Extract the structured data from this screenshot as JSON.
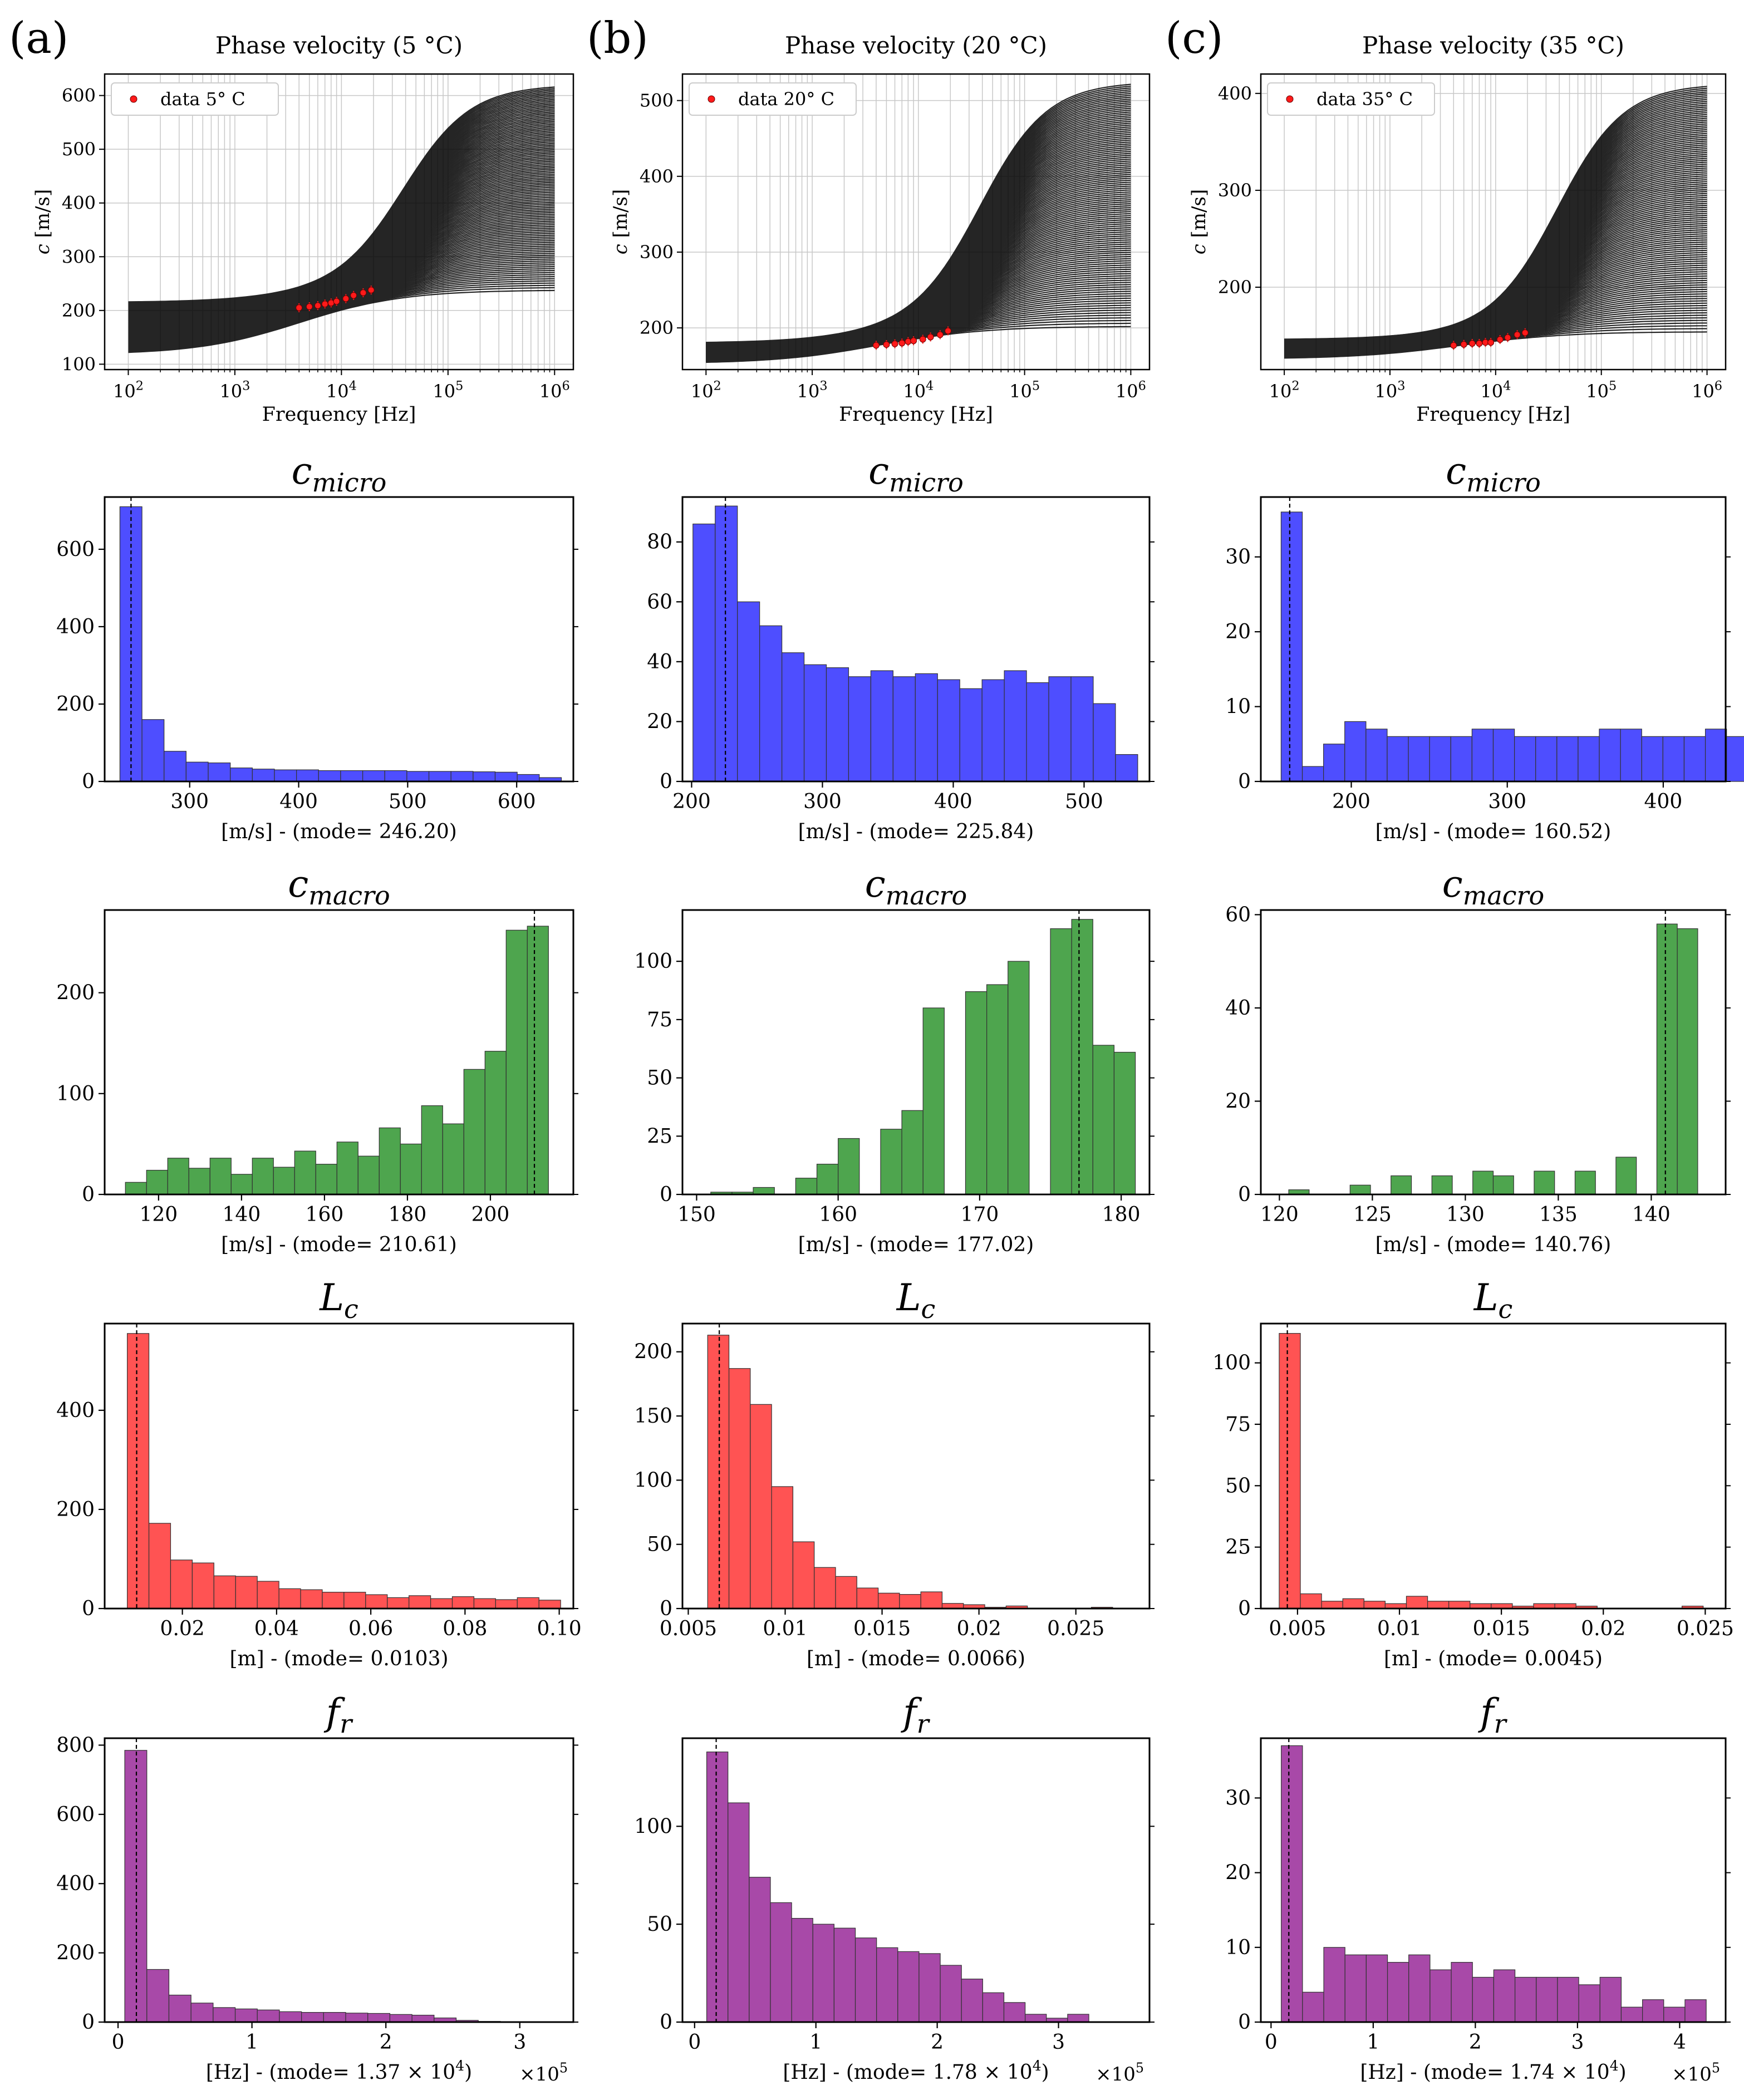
{
  "colors": {
    "micro": "#4444ff",
    "macro": "#45a045",
    "lc": "#ff4a4a",
    "fr": "#a33fa3",
    "data_point": "#ff1a1a",
    "curve": "#000000",
    "grid": "#c8c8c8"
  },
  "columns": [
    {
      "panel_label": "(a)",
      "temp_label": "5°C"
    },
    {
      "panel_label": "(b)",
      "temp_label": "20°C"
    },
    {
      "panel_label": "(c)",
      "temp_label": "35°C"
    }
  ],
  "chart_data": [
    {
      "type": "line",
      "panel": "(a)",
      "title": "Phase velocity (5 °C)",
      "xlabel": "Frequency [Hz]",
      "ylabel": "c [m/s]",
      "xscale": "log",
      "xlim": [
        60,
        1500000
      ],
      "ylim": [
        90,
        640
      ],
      "yticks": [
        100,
        200,
        300,
        400,
        500,
        600
      ],
      "xticks": [
        "10^2",
        "10^3",
        "10^4",
        "10^5",
        "10^6"
      ],
      "legend": "data 5° C",
      "legend_loc": "upper-left",
      "grid": true,
      "curve_family": {
        "count": 120,
        "low_start": [
          118,
          215
        ],
        "low_end": [
          236,
          242
        ],
        "high_end": [
          238,
          620
        ],
        "transition_hz": [
          5000,
          300000
        ]
      },
      "data_points": {
        "x": [
          4000,
          5000,
          6000,
          7000,
          8000,
          9000,
          11000,
          13000,
          16000,
          19000
        ],
        "y": [
          205,
          207,
          209,
          212,
          214,
          217,
          222,
          228,
          233,
          238
        ]
      }
    },
    {
      "type": "line",
      "panel": "(b)",
      "title": "Phase velocity (20 °C)",
      "xlabel": "Frequency [Hz]",
      "ylabel": "c [m/s]",
      "xscale": "log",
      "xlim": [
        60,
        1500000
      ],
      "ylim": [
        145,
        535
      ],
      "yticks": [
        200,
        300,
        400,
        500
      ],
      "xticks": [
        "10^2",
        "10^3",
        "10^4",
        "10^5",
        "10^6"
      ],
      "legend": "data 20° C",
      "legend_loc": "upper-left",
      "grid": true,
      "curve_family": {
        "count": 120,
        "low_start": [
          153,
          180
        ],
        "low_end": [
          200,
          205
        ],
        "high_end": [
          202,
          525
        ],
        "transition_hz": [
          5000,
          300000
        ]
      },
      "data_points": {
        "x": [
          4000,
          5000,
          6000,
          7000,
          8000,
          9000,
          11000,
          13000,
          16000,
          19000
        ],
        "y": [
          177,
          178,
          179,
          180,
          182,
          183,
          185,
          188,
          191,
          196
        ]
      }
    },
    {
      "type": "line",
      "panel": "(c)",
      "title": "Phase velocity (35 °C)",
      "xlabel": "Frequency [Hz]",
      "ylabel": "c [m/s]",
      "xscale": "log",
      "xlim": [
        60,
        1500000
      ],
      "ylim": [
        115,
        420
      ],
      "yticks": [
        200,
        300,
        400
      ],
      "xticks": [
        "10^2",
        "10^3",
        "10^4",
        "10^5",
        "10^6"
      ],
      "legend": "data 35° C",
      "legend_loc": "upper-left",
      "grid": true,
      "curve_family": {
        "count": 120,
        "low_start": [
          126,
          146
        ],
        "low_end": [
          152,
          156
        ],
        "high_end": [
          154,
          410
        ],
        "transition_hz": [
          5000,
          300000
        ]
      },
      "data_points": {
        "x": [
          4000,
          5000,
          6000,
          7000,
          8000,
          9000,
          11000,
          13000,
          16000,
          19000
        ],
        "y": [
          140,
          141,
          142,
          142,
          143,
          143,
          146,
          148,
          151,
          153
        ]
      }
    },
    {
      "type": "bar",
      "panel": "(a)",
      "row": "micro",
      "title": "c_micro",
      "xlabel": "[m/s] - (mode= 246.20)",
      "bin_start": 236,
      "bin_width": 20.25,
      "values": [
        710,
        160,
        78,
        50,
        48,
        35,
        32,
        30,
        30,
        28,
        28,
        28,
        28,
        26,
        26,
        26,
        25,
        24,
        18,
        10
      ],
      "mode": 246.2,
      "xlim": [
        222,
        652
      ],
      "ylim": [
        0,
        735
      ],
      "xticks": [
        300,
        400,
        500,
        600
      ],
      "yticks": [
        0,
        200,
        400,
        600
      ]
    },
    {
      "type": "bar",
      "panel": "(b)",
      "row": "micro",
      "title": "c_micro",
      "xlabel": "[m/s] - (mode= 225.84)",
      "bin_start": 201,
      "bin_width": 17,
      "values": [
        86,
        92,
        60,
        52,
        43,
        39,
        38,
        35,
        37,
        35,
        36,
        34,
        31,
        34,
        37,
        33,
        35,
        35,
        26,
        9
      ],
      "mode": 225.84,
      "xlim": [
        193,
        550
      ],
      "ylim": [
        0,
        95
      ],
      "xticks": [
        200,
        300,
        400,
        500
      ],
      "yticks": [
        0,
        20,
        40,
        60,
        80
      ]
    },
    {
      "type": "bar",
      "panel": "(c)",
      "row": "micro",
      "title": "c_micro",
      "xlabel": "[m/s] - (mode= 160.52)",
      "bin_start": 155,
      "bin_width": 13.6,
      "values": [
        36,
        2,
        5,
        8,
        7,
        6,
        6,
        6,
        6,
        7,
        7,
        6,
        6,
        6,
        6,
        7,
        7,
        6,
        6,
        6,
        7,
        6
      ],
      "mode": 160.52,
      "xlim": [
        142,
        440
      ],
      "ylim": [
        0,
        38
      ],
      "xticks": [
        200,
        300,
        400
      ],
      "yticks": [
        0,
        10,
        20,
        30
      ]
    },
    {
      "type": "bar",
      "panel": "(a)",
      "row": "macro",
      "title": "c_macro",
      "xlabel": "[m/s] - (mode= 210.61)",
      "bin_start": 112,
      "bin_width": 5.1,
      "values": [
        12,
        24,
        36,
        26,
        36,
        20,
        36,
        27,
        43,
        30,
        52,
        38,
        66,
        50,
        88,
        70,
        124,
        142,
        262,
        266
      ],
      "mode": 210.61,
      "xlim": [
        107,
        220
      ],
      "ylim": [
        0,
        282
      ],
      "xticks": [
        120,
        140,
        160,
        180,
        200
      ],
      "yticks": [
        0,
        100,
        200
      ]
    },
    {
      "type": "bar",
      "panel": "(b)",
      "row": "macro",
      "title": "c_macro",
      "xlabel": "[m/s] - (mode= 177.02)",
      "bin_start": 151,
      "bin_width": 1.5,
      "values": [
        1,
        1,
        3,
        0,
        7,
        13,
        24,
        0,
        28,
        36,
        80,
        0,
        87,
        90,
        100,
        0,
        114,
        118,
        64,
        61
      ],
      "mode": 177.02,
      "xlim": [
        149,
        182
      ],
      "ylim": [
        0,
        122
      ],
      "xticks": [
        150,
        160,
        170,
        180
      ],
      "yticks": [
        0,
        25,
        50,
        75,
        100
      ]
    },
    {
      "type": "bar",
      "panel": "(c)",
      "row": "macro",
      "title": "c_macro",
      "xlabel": "[m/s] - (mode= 140.76)",
      "bin_start": 120.5,
      "bin_width": 1.1,
      "values": [
        1,
        0,
        0,
        2,
        0,
        4,
        0,
        4,
        0,
        5,
        4,
        0,
        5,
        0,
        5,
        0,
        8,
        0,
        58,
        57
      ],
      "mode": 140.76,
      "xlim": [
        119,
        144
      ],
      "ylim": [
        0,
        61
      ],
      "xticks": [
        120,
        125,
        130,
        135,
        140
      ],
      "yticks": [
        0,
        20,
        40,
        60
      ]
    },
    {
      "type": "bar",
      "panel": "(a)",
      "row": "lc",
      "title": "L_c",
      "xlabel": "[m] - (mode= 0.0103)",
      "bin_start": 0.0083,
      "bin_width": 0.0046,
      "values": [
        555,
        172,
        98,
        92,
        66,
        65,
        55,
        40,
        38,
        33,
        33,
        28,
        22,
        26,
        20,
        24,
        20,
        18,
        22,
        17
      ],
      "mode": 0.0103,
      "xlim": [
        0.0035,
        0.103
      ],
      "ylim": [
        0,
        575
      ],
      "xticks": [
        0.02,
        0.04,
        0.06,
        0.08,
        0.1
      ],
      "yticks": [
        0,
        200,
        400
      ]
    },
    {
      "type": "bar",
      "panel": "(b)",
      "row": "lc",
      "title": "L_c",
      "xlabel": "[m] - (mode= 0.0066)",
      "bin_start": 0.006,
      "bin_width": 0.0011,
      "values": [
        213,
        187,
        159,
        95,
        52,
        32,
        25,
        16,
        12,
        11,
        13,
        4,
        3,
        1,
        2,
        0,
        0,
        0,
        1,
        0
      ],
      "mode": 0.0066,
      "xlim": [
        0.0047,
        0.0288
      ],
      "ylim": [
        0,
        222
      ],
      "xticks": [
        0.005,
        0.01,
        0.015,
        0.02,
        0.025
      ],
      "yticks": [
        0,
        50,
        100,
        150,
        200
      ]
    },
    {
      "type": "bar",
      "panel": "(c)",
      "row": "lc",
      "title": "L_c",
      "xlabel": "[m] - (mode= 0.0045)",
      "bin_start": 0.0041,
      "bin_width": 0.00104,
      "values": [
        112,
        6,
        3,
        4,
        3,
        2,
        5,
        3,
        3,
        2,
        2,
        1,
        2,
        2,
        1,
        0,
        0,
        0,
        0,
        1
      ],
      "mode": 0.0045,
      "xlim": [
        0.0032,
        0.026
      ],
      "ylim": [
        0,
        116
      ],
      "xticks": [
        0.005,
        0.01,
        0.015,
        0.02,
        0.025
      ],
      "yticks": [
        0,
        25,
        50,
        75,
        100
      ]
    },
    {
      "type": "bar",
      "panel": "(a)",
      "row": "fr",
      "title": "f_r",
      "xlabel": "[Hz] - (mode= 1.37 × 10^4)",
      "x_multiplier": "×10^5",
      "bin_start": 0.05,
      "bin_width": 0.165,
      "values": [
        785,
        152,
        78,
        55,
        42,
        38,
        35,
        30,
        28,
        28,
        26,
        25,
        22,
        20,
        12,
        5,
        2,
        1,
        1,
        0
      ],
      "mode": 0.137,
      "xlim": [
        -0.1,
        3.4
      ],
      "ylim": [
        0,
        820
      ],
      "xticks": [
        0,
        1,
        2,
        3
      ],
      "yticks": [
        0,
        200,
        400,
        600,
        800
      ]
    },
    {
      "type": "bar",
      "panel": "(b)",
      "row": "fr",
      "title": "f_r",
      "xlabel": "[Hz] - (mode= 1.78 × 10^4)",
      "x_multiplier": "×10^5",
      "bin_start": 0.1,
      "bin_width": 0.175,
      "values": [
        138,
        112,
        74,
        61,
        53,
        50,
        48,
        43,
        38,
        36,
        35,
        29,
        22,
        15,
        10,
        4,
        2,
        4
      ],
      "mode": 0.178,
      "xlim": [
        -0.1,
        3.75
      ],
      "ylim": [
        0,
        145
      ],
      "xticks": [
        0,
        1,
        2,
        3
      ],
      "yticks": [
        0,
        50,
        100
      ]
    },
    {
      "type": "bar",
      "panel": "(c)",
      "row": "fr",
      "title": "f_r",
      "xlabel": "[Hz] - (mode= 1.74 × 10^4)",
      "x_multiplier": "×10^5",
      "bin_start": 0.1,
      "bin_width": 0.208,
      "values": [
        37,
        4,
        10,
        9,
        9,
        8,
        9,
        7,
        8,
        6,
        7,
        6,
        6,
        6,
        5,
        6,
        2,
        3,
        2,
        3
      ],
      "mode": 0.174,
      "xlim": [
        -0.1,
        4.45
      ],
      "ylim": [
        0,
        38
      ],
      "xticks": [
        0,
        1,
        2,
        3,
        4
      ],
      "yticks": [
        0,
        10,
        20,
        30
      ]
    }
  ]
}
